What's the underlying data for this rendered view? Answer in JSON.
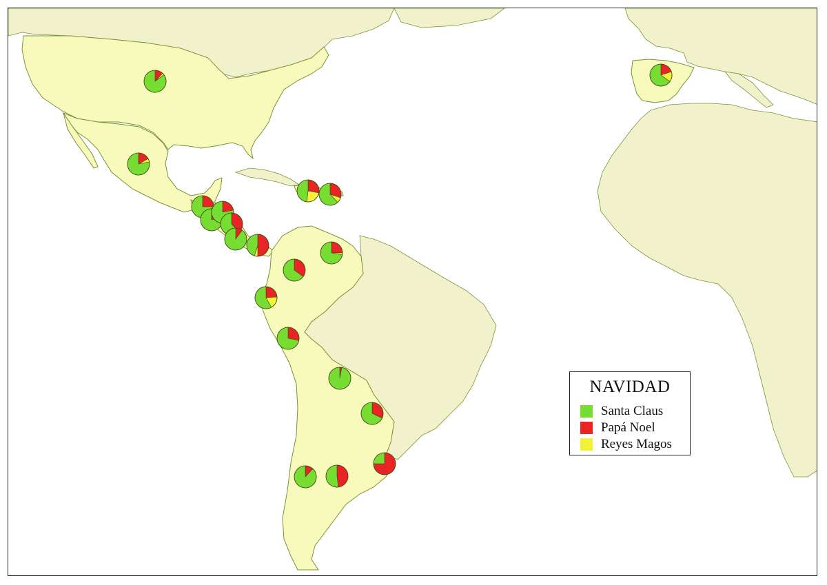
{
  "legend": {
    "title": "NAVIDAD",
    "items": [
      {
        "label": "Santa Claus",
        "color": "#77dd33"
      },
      {
        "label": "Papá Noel",
        "color": "#e82424"
      },
      {
        "label": "Reyes Magos",
        "color": "#f2f23a"
      }
    ]
  },
  "colors": {
    "ocean": "#ffffff",
    "highlighted_land": "#f7fabb",
    "other_land": "#f1f2cb",
    "border": "#7a9238"
  },
  "chart_data": {
    "type": "pie-map",
    "categories": [
      "Santa Claus",
      "Papá Noel",
      "Reyes Magos"
    ],
    "pies": [
      {
        "region": "United States",
        "values": [
          85,
          12,
          3
        ]
      },
      {
        "region": "Mexico",
        "values": [
          78,
          17,
          5
        ]
      },
      {
        "region": "Guatemala",
        "values": [
          75,
          25,
          0
        ]
      },
      {
        "region": "El Salvador",
        "values": [
          80,
          20,
          0
        ]
      },
      {
        "region": "Honduras",
        "values": [
          78,
          22,
          0
        ]
      },
      {
        "region": "Nicaragua",
        "values": [
          62,
          38,
          0
        ]
      },
      {
        "region": "Costa Rica",
        "values": [
          90,
          10,
          0
        ]
      },
      {
        "region": "Panama",
        "values": [
          45,
          50,
          5
        ]
      },
      {
        "region": "Dominican Republic",
        "values": [
          48,
          28,
          24
        ]
      },
      {
        "region": "Puerto Rico",
        "values": [
          62,
          30,
          8
        ]
      },
      {
        "region": "Colombia",
        "values": [
          65,
          35,
          0
        ]
      },
      {
        "region": "Venezuela",
        "values": [
          72,
          25,
          3
        ]
      },
      {
        "region": "Ecuador",
        "values": [
          58,
          24,
          18
        ]
      },
      {
        "region": "Peru",
        "values": [
          72,
          28,
          0
        ]
      },
      {
        "region": "Bolivia",
        "values": [
          97,
          3,
          0
        ]
      },
      {
        "region": "Paraguay",
        "values": [
          68,
          32,
          0
        ]
      },
      {
        "region": "Chile",
        "values": [
          88,
          12,
          0
        ]
      },
      {
        "region": "Argentina",
        "values": [
          52,
          48,
          0
        ]
      },
      {
        "region": "Uruguay",
        "values": [
          25,
          75,
          0
        ]
      },
      {
        "region": "Spain",
        "values": [
          65,
          20,
          15
        ]
      }
    ]
  }
}
